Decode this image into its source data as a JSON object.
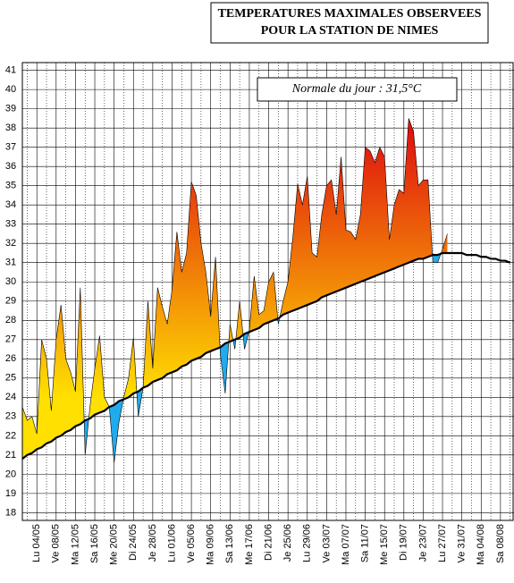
{
  "chart_data": {
    "type": "temperature-anomaly",
    "title": [
      "TEMPERATURES MAXIMALES OBSERVEES",
      "POUR LA STATION DE NIMES"
    ],
    "annotation": "Normale du jour : 31,5°C",
    "categories": [
      null,
      null,
      null,
      "Lu 04/05",
      null,
      null,
      null,
      "Ve 08/05",
      null,
      null,
      null,
      "Ma 12/05",
      null,
      null,
      null,
      "Sa 16/05",
      null,
      null,
      null,
      "Me 20/05",
      null,
      null,
      null,
      "Di 24/05",
      null,
      null,
      null,
      "Je 28/05",
      null,
      null,
      null,
      "Lu 01/06",
      null,
      null,
      null,
      "Ve 05/06",
      null,
      null,
      null,
      "Ma 09/06",
      null,
      null,
      null,
      "Sa 13/06",
      null,
      null,
      null,
      "Me 17/06",
      null,
      null,
      null,
      "Di 21/06",
      null,
      null,
      null,
      "Je 25/06",
      null,
      null,
      null,
      "Lu 29/06",
      null,
      null,
      null,
      "Ve 03/07",
      null,
      null,
      null,
      "Ma 07/07",
      null,
      null,
      null,
      "Sa 11/07",
      null,
      null,
      null,
      "Me 15/07",
      null,
      null,
      null,
      "Di 19/07",
      null,
      null,
      null,
      "Je 23/07",
      null,
      null,
      null,
      "Lu 27/07",
      null,
      null,
      null,
      "Ve 31/07",
      null,
      null,
      null,
      "Ma 04/08",
      null,
      null,
      null,
      "Sa 08/08",
      null,
      null
    ],
    "series": [
      {
        "color": "#000000",
        "values": [
          23.5,
          22.8,
          23.0,
          22.1,
          27.0,
          26.0,
          23.3,
          27.0,
          28.8,
          26.0,
          25.3,
          24.3,
          29.7,
          21.0,
          23.5,
          25.5,
          27.2,
          24.0,
          23.5,
          20.6,
          22.7,
          24.0,
          25.0,
          27.1,
          23.0,
          24.5,
          29.0,
          25.5,
          29.7,
          28.7,
          27.8,
          29.6,
          32.6,
          30.5,
          31.5,
          35.2,
          34.5,
          32.0,
          30.5,
          28.2,
          31.3,
          26.2,
          24.2,
          27.8,
          26.5,
          29.0,
          26.5,
          27.5,
          30.3,
          28.3,
          28.5,
          30.0,
          30.5,
          27.8,
          29.0,
          30.0,
          32.3,
          35.1,
          34.0,
          35.5,
          31.5,
          31.3,
          33.5,
          35.0,
          35.3,
          33.5,
          36.5,
          32.7,
          32.6,
          32.2,
          33.5,
          37.0,
          36.8,
          36.2,
          37.0,
          36.5,
          32.2,
          34.0,
          34.8,
          34.6,
          38.5,
          37.8,
          35.0,
          35.3,
          35.3,
          31.0,
          31.0,
          31.7,
          32.5,
          null,
          null,
          null,
          null,
          null,
          null,
          null,
          null,
          null,
          null,
          null,
          null,
          null
        ]
      },
      {
        "color": "#000000",
        "values": [
          20.8,
          21.0,
          21.1,
          21.3,
          21.4,
          21.6,
          21.7,
          21.9,
          22.0,
          22.2,
          22.3,
          22.5,
          22.6,
          22.8,
          22.9,
          23.1,
          23.2,
          23.3,
          23.5,
          23.6,
          23.8,
          23.9,
          24.0,
          24.2,
          24.3,
          24.5,
          24.6,
          24.8,
          24.9,
          25.0,
          25.2,
          25.3,
          25.4,
          25.6,
          25.7,
          25.9,
          26.0,
          26.1,
          26.3,
          26.4,
          26.5,
          26.6,
          26.8,
          26.9,
          27.0,
          27.1,
          27.3,
          27.4,
          27.5,
          27.6,
          27.8,
          27.9,
          28.0,
          28.1,
          28.3,
          28.4,
          28.5,
          28.6,
          28.7,
          28.8,
          28.9,
          29.0,
          29.2,
          29.3,
          29.4,
          29.5,
          29.6,
          29.7,
          29.8,
          29.9,
          30.0,
          30.1,
          30.2,
          30.3,
          30.4,
          30.5,
          30.6,
          30.7,
          30.8,
          30.9,
          31.0,
          31.1,
          31.2,
          31.2,
          31.3,
          31.4,
          31.4,
          31.5,
          31.5,
          31.5,
          31.5,
          31.5,
          31.4,
          31.4,
          31.4,
          31.3,
          31.3,
          31.2,
          31.2,
          31.1,
          31.1,
          31.0
        ]
      }
    ],
    "above_colors": [
      "#ffe000",
      "#e01010"
    ],
    "below_color": "#22aaee",
    "ylim": [
      17.6,
      41.4
    ],
    "yticks": [
      18,
      19,
      20,
      21,
      22,
      23,
      24,
      25,
      26,
      27,
      28,
      29,
      30,
      31,
      32,
      33,
      34,
      35,
      36,
      37,
      38,
      39,
      40,
      41
    ],
    "grid": true
  }
}
